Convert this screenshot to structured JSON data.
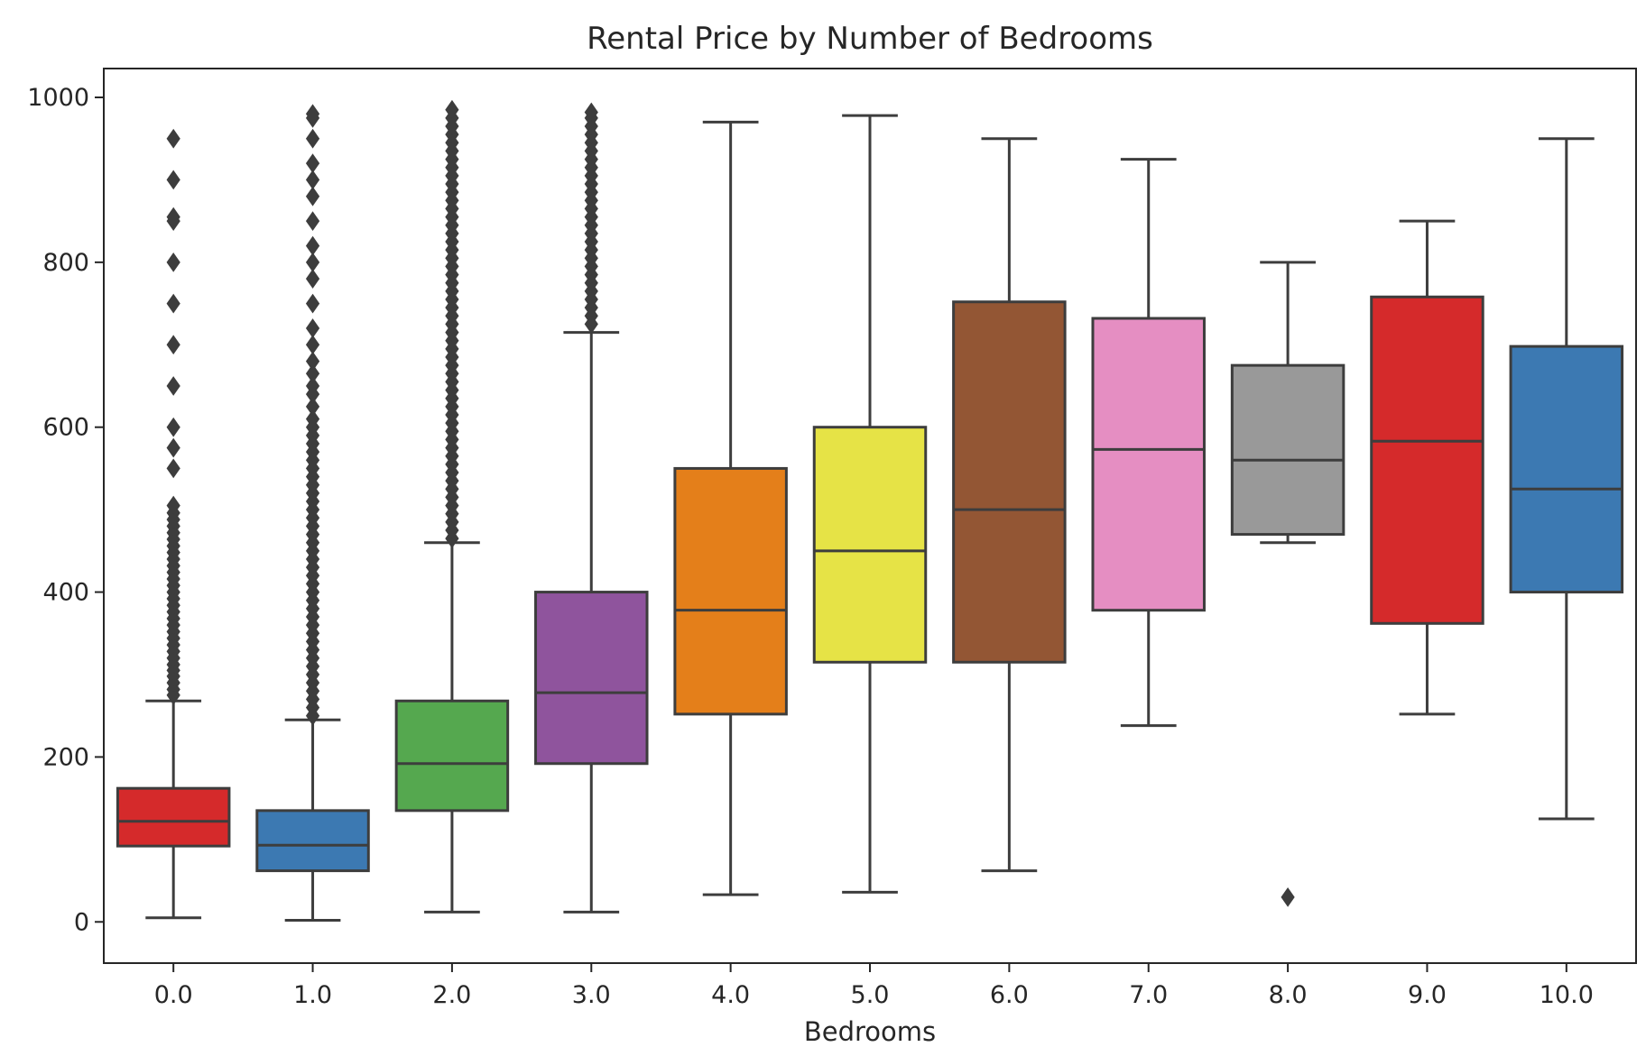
{
  "chart_data": {
    "type": "box",
    "title": "Rental Price by Number of Bedrooms",
    "xlabel": "Bedrooms",
    "ylabel": "",
    "ylim": [
      -50,
      1035
    ],
    "yticks": [
      0,
      200,
      400,
      600,
      800,
      1000
    ],
    "grid": false,
    "legend": "none",
    "categories": [
      "0.0",
      "1.0",
      "2.0",
      "3.0",
      "4.0",
      "5.0",
      "6.0",
      "7.0",
      "8.0",
      "9.0",
      "10.0"
    ],
    "boxes": [
      {
        "category": "0.0",
        "color": "#d52a2b",
        "whisker_low": 5,
        "q1": 92,
        "median": 122,
        "q3": 162,
        "whisker_high": 268,
        "outliers": [
          275,
          282,
          290,
          298,
          305,
          312,
          320,
          328,
          336,
          344,
          352,
          360,
          368,
          376,
          384,
          392,
          400,
          408,
          416,
          424,
          432,
          440,
          448,
          456,
          464,
          472,
          480,
          488,
          496,
          505,
          550,
          575,
          600,
          650,
          700,
          750,
          800,
          850,
          855,
          900,
          950
        ]
      },
      {
        "category": "1.0",
        "color": "#3c79b2",
        "whisker_low": 2,
        "q1": 62,
        "median": 93,
        "q3": 135,
        "whisker_high": 245,
        "outliers": [
          250,
          260,
          270,
          280,
          290,
          300,
          310,
          320,
          330,
          340,
          350,
          360,
          370,
          380,
          390,
          400,
          410,
          420,
          430,
          440,
          450,
          460,
          470,
          480,
          490,
          500,
          510,
          520,
          530,
          540,
          550,
          560,
          570,
          580,
          590,
          600,
          610,
          625,
          640,
          650,
          665,
          680,
          700,
          720,
          750,
          780,
          800,
          820,
          850,
          880,
          900,
          920,
          950,
          975,
          980
        ]
      },
      {
        "category": "2.0",
        "color": "#55a84f",
        "whisker_low": 12,
        "q1": 135,
        "median": 192,
        "q3": 268,
        "whisker_high": 460,
        "outliers": [
          465,
          475,
          485,
          495,
          505,
          515,
          525,
          535,
          545,
          555,
          565,
          575,
          585,
          595,
          605,
          615,
          625,
          635,
          645,
          655,
          665,
          675,
          685,
          695,
          705,
          715,
          725,
          735,
          745,
          755,
          765,
          775,
          785,
          795,
          805,
          815,
          825,
          835,
          845,
          855,
          865,
          875,
          885,
          895,
          905,
          915,
          925,
          935,
          945,
          955,
          965,
          975,
          985
        ]
      },
      {
        "category": "3.0",
        "color": "#8f549d",
        "whisker_low": 12,
        "q1": 192,
        "median": 278,
        "q3": 400,
        "whisker_high": 715,
        "outliers": [
          725,
          735,
          745,
          755,
          765,
          775,
          785,
          795,
          805,
          815,
          825,
          835,
          845,
          855,
          865,
          875,
          885,
          895,
          905,
          915,
          925,
          935,
          945,
          955,
          965,
          975,
          982
        ]
      },
      {
        "category": "4.0",
        "color": "#e47f1a",
        "whisker_low": 33,
        "q1": 252,
        "median": 378,
        "q3": 550,
        "whisker_high": 970,
        "outliers": []
      },
      {
        "category": "5.0",
        "color": "#e6e346",
        "whisker_low": 36,
        "q1": 315,
        "median": 450,
        "q3": 600,
        "whisker_high": 978,
        "outliers": []
      },
      {
        "category": "6.0",
        "color": "#935634",
        "whisker_low": 62,
        "q1": 315,
        "median": 500,
        "q3": 752,
        "whisker_high": 950,
        "outliers": []
      },
      {
        "category": "7.0",
        "color": "#e58ec2",
        "whisker_low": 238,
        "q1": 378,
        "median": 573,
        "q3": 732,
        "whisker_high": 925,
        "outliers": []
      },
      {
        "category": "8.0",
        "color": "#999999",
        "whisker_low": 460,
        "q1": 470,
        "median": 560,
        "q3": 675,
        "whisker_high": 800,
        "outliers": [
          30
        ]
      },
      {
        "category": "9.0",
        "color": "#d52a2b",
        "whisker_low": 252,
        "q1": 362,
        "median": 583,
        "q3": 758,
        "whisker_high": 850,
        "outliers": []
      },
      {
        "category": "10.0",
        "color": "#3c79b2",
        "whisker_low": 125,
        "q1": 400,
        "median": 525,
        "q3": 698,
        "whisker_high": 950,
        "outliers": []
      }
    ]
  }
}
